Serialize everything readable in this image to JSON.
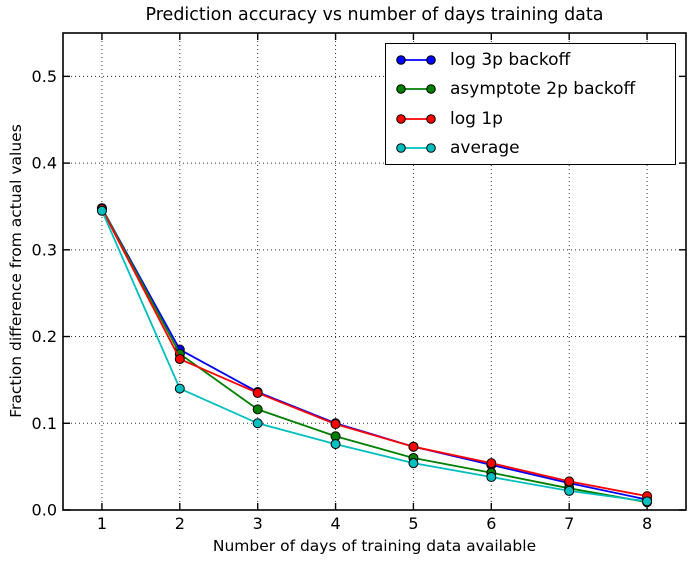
{
  "chart_data": {
    "type": "line",
    "title": "Prediction accuracy vs number of days training data",
    "xlabel": "Number of days of training data available",
    "ylabel": "Fraction difference from actual values",
    "x": [
      1,
      2,
      3,
      4,
      5,
      6,
      7,
      8
    ],
    "xlim": [
      0.5,
      8.5
    ],
    "ylim": [
      0,
      0.55
    ],
    "xticks": [
      1,
      2,
      3,
      4,
      5,
      6,
      7,
      8
    ],
    "yticks": [
      0.0,
      0.1,
      0.2,
      0.3,
      0.4,
      0.5
    ],
    "grid": true,
    "grid_linestyle": "dotted",
    "grid_color": "#000000",
    "legend_position": "upper right",
    "marker": "circle",
    "marker_edge_color": "#000000",
    "background_color": "#ffffff",
    "series": [
      {
        "name": "log 3p backoff",
        "color": "#0000ff",
        "values": [
          0.348,
          0.185,
          0.136,
          0.1,
          0.073,
          0.052,
          0.031,
          0.012
        ]
      },
      {
        "name": "asymptote 2p backoff",
        "color": "#008000",
        "values": [
          0.348,
          0.18,
          0.116,
          0.085,
          0.06,
          0.043,
          0.025,
          0.009
        ]
      },
      {
        "name": "log 1p",
        "color": "#ff0000",
        "values": [
          0.347,
          0.174,
          0.135,
          0.099,
          0.073,
          0.054,
          0.033,
          0.016
        ]
      },
      {
        "name": "average",
        "color": "#00bfbf",
        "values": [
          0.345,
          0.14,
          0.1,
          0.076,
          0.054,
          0.038,
          0.022,
          0.01
        ]
      }
    ]
  }
}
